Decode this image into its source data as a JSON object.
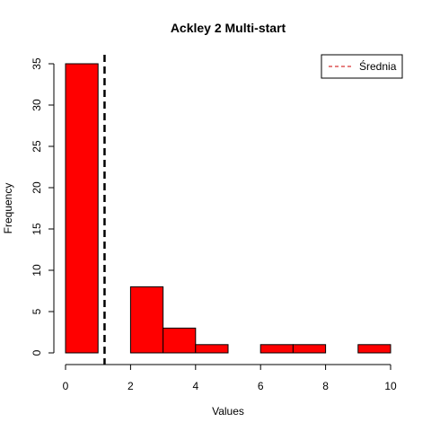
{
  "chart_data": {
    "type": "bar",
    "title": "Ackley 2 Multi-start",
    "xlabel": "Values",
    "ylabel": "Frequency",
    "xlim": [
      0,
      10
    ],
    "ylim": [
      0,
      35
    ],
    "x_ticks": [
      0,
      2,
      4,
      6,
      8,
      10
    ],
    "y_ticks": [
      0,
      5,
      10,
      15,
      20,
      25,
      30,
      35
    ],
    "bins": [
      {
        "from": 0,
        "to": 1,
        "count": 35
      },
      {
        "from": 1,
        "to": 2,
        "count": 0
      },
      {
        "from": 2,
        "to": 3,
        "count": 8
      },
      {
        "from": 3,
        "to": 4,
        "count": 3
      },
      {
        "from": 4,
        "to": 5,
        "count": 1
      },
      {
        "from": 5,
        "to": 6,
        "count": 0
      },
      {
        "from": 6,
        "to": 7,
        "count": 1
      },
      {
        "from": 7,
        "to": 8,
        "count": 1
      },
      {
        "from": 8,
        "to": 9,
        "count": 0
      },
      {
        "from": 9,
        "to": 10,
        "count": 1
      }
    ],
    "bar_color": "#ff0000",
    "mean_line": {
      "value": 1.2,
      "color": "#000000",
      "style": "dashed"
    },
    "legend": {
      "position": "top-right",
      "entries": [
        {
          "label": "Średnia",
          "color": "#cc0000",
          "style": "dashed"
        }
      ]
    },
    "grid": false
  }
}
